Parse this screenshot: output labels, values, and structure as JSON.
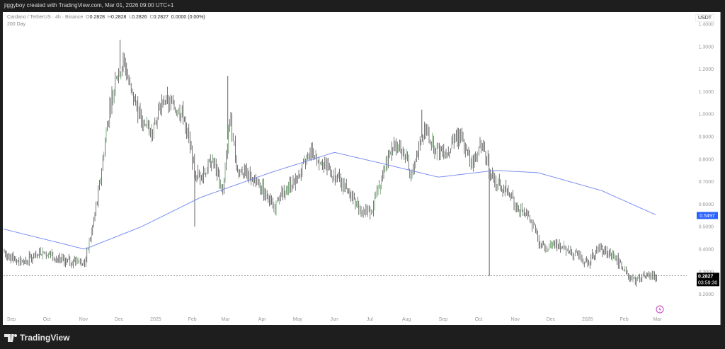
{
  "header": {
    "credit": "jiggyboy created with TradingView.com, Mar 01, 2026 09:00 UTC+1"
  },
  "legend": {
    "symbol": "Cardano / TetherUS · 4h · Binance",
    "o_label": "O",
    "o": "0.2828",
    "h_label": "H",
    "h": "0.2828",
    "l_label": "L",
    "l": "0.2826",
    "c_label": "C",
    "c": "0.2827",
    "change": "0.0000 (0.00%)",
    "indicator": "200 Day"
  },
  "footer": {
    "brand": "TradingView",
    "logo_icon": "tradingview-logo-icon"
  },
  "colors": {
    "candle": "#1a1a1a",
    "candle_up": "#2e7d32",
    "ma": "#7b8ff0",
    "ma_badge": "#2962ff",
    "price_badge": "#000000"
  },
  "chart_data": {
    "type": "candlestick",
    "timeframe": "4h",
    "currency": "USDT",
    "ylim": [
      0.15,
      1.42
    ],
    "y_ticks": [
      "1.4000",
      "1.3000",
      "1.2000",
      "1.1000",
      "1.0000",
      "0.9000",
      "0.8000",
      "0.7000",
      "0.6000",
      "0.5000",
      "0.4000",
      "0.3000",
      "0.2000"
    ],
    "x_ticks": [
      [
        "2024-09-01",
        "Sep"
      ],
      [
        "2024-10-01",
        "Oct"
      ],
      [
        "2024-11-01",
        "Nov"
      ],
      [
        "2024-12-01",
        "Dec"
      ],
      [
        "2025-01-01",
        "2025"
      ],
      [
        "2025-02-01",
        "Feb"
      ],
      [
        "2025-03-01",
        "Mar"
      ],
      [
        "2025-04-01",
        "Apr"
      ],
      [
        "2025-05-01",
        "May"
      ],
      [
        "2025-06-01",
        "Jun"
      ],
      [
        "2025-07-01",
        "Jul"
      ],
      [
        "2025-08-01",
        "Aug"
      ],
      [
        "2025-09-01",
        "Sep"
      ],
      [
        "2025-10-01",
        "Oct"
      ],
      [
        "2025-11-01",
        "Nov"
      ],
      [
        "2025-12-01",
        "Dec"
      ],
      [
        "2026-01-01",
        "2026"
      ],
      [
        "2026-02-01",
        "Feb"
      ],
      [
        "2026-03-01",
        "Mar"
      ]
    ],
    "price_path": [
      [
        "2024-08-25",
        0.39
      ],
      [
        "2024-09-09",
        0.34
      ],
      [
        "2024-09-27",
        0.39
      ],
      [
        "2024-10-15",
        0.35
      ],
      [
        "2024-11-02",
        0.34
      ],
      [
        "2024-11-08",
        0.48
      ],
      [
        "2024-11-14",
        0.66
      ],
      [
        "2024-11-23",
        1.03
      ],
      [
        "2024-11-29",
        1.16
      ],
      [
        "2024-12-05",
        1.24
      ],
      [
        "2024-12-11",
        1.1
      ],
      [
        "2024-12-20",
        0.97
      ],
      [
        "2024-12-29",
        0.91
      ],
      [
        "2025-01-07",
        1.07
      ],
      [
        "2025-01-16",
        1.03
      ],
      [
        "2025-01-25",
        0.99
      ],
      [
        "2025-02-03",
        0.75
      ],
      [
        "2025-02-09",
        0.72
      ],
      [
        "2025-02-18",
        0.8
      ],
      [
        "2025-02-27",
        0.66
      ],
      [
        "2025-03-05",
        1.0
      ],
      [
        "2025-03-11",
        0.75
      ],
      [
        "2025-03-20",
        0.74
      ],
      [
        "2025-04-01",
        0.67
      ],
      [
        "2025-04-10",
        0.58
      ],
      [
        "2025-04-19",
        0.66
      ],
      [
        "2025-05-01",
        0.72
      ],
      [
        "2025-05-13",
        0.83
      ],
      [
        "2025-05-25",
        0.77
      ],
      [
        "2025-06-06",
        0.7
      ],
      [
        "2025-06-15",
        0.64
      ],
      [
        "2025-06-24",
        0.56
      ],
      [
        "2025-07-03",
        0.58
      ],
      [
        "2025-07-12",
        0.74
      ],
      [
        "2025-07-21",
        0.88
      ],
      [
        "2025-07-30",
        0.83
      ],
      [
        "2025-08-05",
        0.72
      ],
      [
        "2025-08-11",
        0.85
      ],
      [
        "2025-08-17",
        0.94
      ],
      [
        "2025-08-25",
        0.85
      ],
      [
        "2025-09-03",
        0.83
      ],
      [
        "2025-09-15",
        0.91
      ],
      [
        "2025-09-24",
        0.78
      ],
      [
        "2025-10-03",
        0.87
      ],
      [
        "2025-10-09",
        0.8
      ],
      [
        "2025-10-11",
        0.72
      ],
      [
        "2025-10-18",
        0.69
      ],
      [
        "2025-10-27",
        0.64
      ],
      [
        "2025-11-08",
        0.56
      ],
      [
        "2025-11-17",
        0.5
      ],
      [
        "2025-11-23",
        0.41
      ],
      [
        "2025-12-02",
        0.42
      ],
      [
        "2025-12-11",
        0.41
      ],
      [
        "2025-12-20",
        0.38
      ],
      [
        "2026-01-01",
        0.34
      ],
      [
        "2026-01-10",
        0.41
      ],
      [
        "2026-01-19",
        0.38
      ],
      [
        "2026-01-28",
        0.34
      ],
      [
        "2026-02-03",
        0.28
      ],
      [
        "2026-02-09",
        0.26
      ],
      [
        "2026-02-18",
        0.28
      ],
      [
        "2026-03-01",
        0.2827
      ]
    ],
    "wicks": [
      [
        "2024-12-02",
        1.33
      ],
      [
        "2025-03-03",
        1.17
      ],
      [
        "2025-02-03",
        0.5
      ],
      [
        "2025-10-10",
        0.28
      ],
      [
        "2025-08-14",
        1.02
      ]
    ],
    "ma_name": "200 Day",
    "ma_path": [
      [
        "2024-08-25",
        0.49
      ],
      [
        "2024-11-02",
        0.4
      ],
      [
        "2024-12-20",
        0.5
      ],
      [
        "2025-02-08",
        0.63
      ],
      [
        "2025-04-08",
        0.74
      ],
      [
        "2025-06-01",
        0.83
      ],
      [
        "2025-07-12",
        0.78
      ],
      [
        "2025-08-28",
        0.72
      ],
      [
        "2025-10-15",
        0.75
      ],
      [
        "2025-11-20",
        0.74
      ],
      [
        "2026-01-13",
        0.66
      ],
      [
        "2026-03-01",
        0.5497
      ]
    ],
    "ma_last": "0.5497",
    "last_price": "0.2827",
    "countdown": "03:59:30"
  }
}
